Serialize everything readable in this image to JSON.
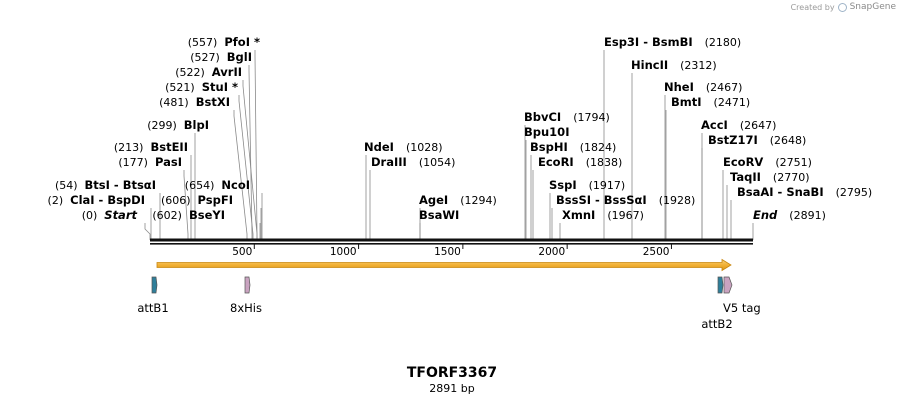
{
  "credit": {
    "created_by": "Created by",
    "brand": "SnapGene"
  },
  "map": {
    "name": "TFORF3367",
    "length": 2891,
    "length_label": "2891 bp",
    "ticks": [
      500,
      1000,
      1500,
      2000,
      2500
    ]
  },
  "sites": [
    {
      "pos": "(557)",
      "enzyme": "PfoI *"
    },
    {
      "pos": "(527)",
      "enzyme": "BglI"
    },
    {
      "pos": "(522)",
      "enzyme": "AvrII"
    },
    {
      "pos": "(521)",
      "enzyme": "StuI *"
    },
    {
      "pos": "(481)",
      "enzyme": "BstXI"
    },
    {
      "pos": "(299)",
      "enzyme": "BlpI"
    },
    {
      "pos": "(213)",
      "enzyme": "BstEII"
    },
    {
      "pos": "(177)",
      "enzyme": "PasI"
    },
    {
      "pos": "(54)",
      "enzyme": "BtsI - BtsαI"
    },
    {
      "pos": "(2)",
      "enzyme": "ClaI - BspDI"
    },
    {
      "pos": "(0)",
      "enzyme": "Start"
    },
    {
      "pos": "(654)",
      "enzyme": "NcoI"
    },
    {
      "pos": "(606)",
      "enzyme": "PspFI"
    },
    {
      "pos": "(602)",
      "enzyme": "BseYI"
    },
    {
      "pos": "(1028)",
      "enzyme": "NdeI"
    },
    {
      "pos": "(1054)",
      "enzyme": "DraIII"
    },
    {
      "pos": "(1294)",
      "enzyme": "AgeI"
    },
    {
      "pos": "",
      "enzyme": "BsaWI"
    },
    {
      "pos": "(1794)",
      "enzyme": "BbvCI"
    },
    {
      "pos": "",
      "enzyme": "Bpu10I"
    },
    {
      "pos": "(1824)",
      "enzyme": "BspHI"
    },
    {
      "pos": "(1838)",
      "enzyme": "EcoRI"
    },
    {
      "pos": "(1917)",
      "enzyme": "SspI"
    },
    {
      "pos": "(1928)",
      "enzyme": "BssSI - BssSαI"
    },
    {
      "pos": "(1967)",
      "enzyme": "XmnI"
    },
    {
      "pos": "(2180)",
      "enzyme": "Esp3I - BsmBI"
    },
    {
      "pos": "(2312)",
      "enzyme": "HincII"
    },
    {
      "pos": "(2467)",
      "enzyme": "NheI"
    },
    {
      "pos": "(2471)",
      "enzyme": "BmtI"
    },
    {
      "pos": "(2647)",
      "enzyme": "AccI"
    },
    {
      "pos": "(2648)",
      "enzyme": "BstZ17I"
    },
    {
      "pos": "(2751)",
      "enzyme": "EcoRV"
    },
    {
      "pos": "(2770)",
      "enzyme": "TaqII"
    },
    {
      "pos": "(2795)",
      "enzyme": "BsaAI - SnaBI"
    },
    {
      "pos": "(2891)",
      "enzyme": "End"
    }
  ],
  "features": [
    {
      "name": "attB1",
      "color": "#2f7f9a"
    },
    {
      "name": "8xHis",
      "color": "#c9a3c0"
    },
    {
      "name": "V5 tag",
      "color": "#c9a3c0"
    },
    {
      "name": "attB2",
      "color": "#2f7f9a"
    }
  ],
  "orf": {
    "color": "#f2b035"
  }
}
